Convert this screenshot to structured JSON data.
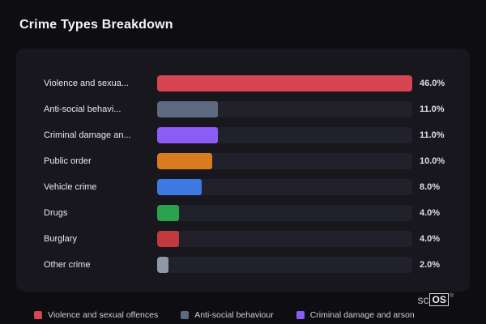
{
  "page": {
    "title": "Crime Types Breakdown"
  },
  "chart_data": {
    "type": "bar",
    "orientation": "horizontal",
    "title": "Crime Types Breakdown",
    "xlabel": "",
    "ylabel": "",
    "xlim": [
      0,
      46
    ],
    "grid": false,
    "legend_position": "bottom",
    "categories": [
      "Violence and sexua...",
      "Anti-social behavi...",
      "Criminal damage an...",
      "Public order",
      "Vehicle crime",
      "Drugs",
      "Burglary",
      "Other crime"
    ],
    "values": [
      46.0,
      11.0,
      11.0,
      10.0,
      8.0,
      4.0,
      4.0,
      2.0
    ],
    "value_labels": [
      "46.0%",
      "11.0%",
      "11.0%",
      "10.0%",
      "8.0%",
      "4.0%",
      "4.0%",
      "2.0%"
    ],
    "max_value": 46.0,
    "colors": [
      "#d64550",
      "#5c6b80",
      "#8b5cf6",
      "#d97c1e",
      "#3d78e3",
      "#2aa14c",
      "#c0393f",
      "#8e98a6"
    ],
    "track_color": "#21212b",
    "legend": [
      {
        "label": "Violence and sexual offences",
        "color": "#d64550"
      },
      {
        "label": "Anti-social behaviour",
        "color": "#5c6b80"
      },
      {
        "label": "Criminal damage and arson",
        "color": "#8b5cf6"
      }
    ]
  },
  "branding": {
    "prefix": "sc",
    "box": "OS",
    "reg": "®"
  }
}
